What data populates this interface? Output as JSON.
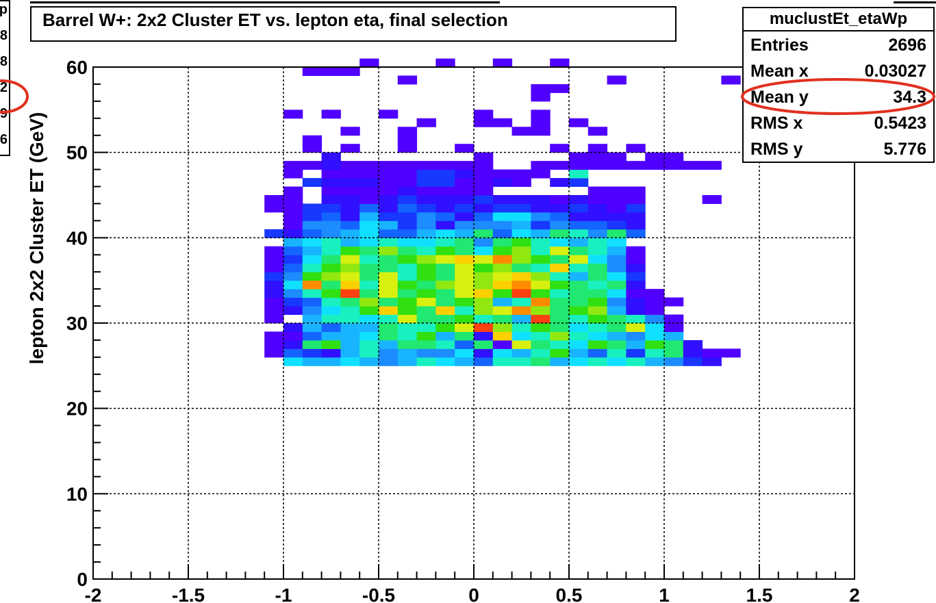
{
  "title": "Barrel W+: 2x2 Cluster ET vs. lepton eta, final selection",
  "stats": {
    "name": "muclustEt_etaWp",
    "rows": [
      {
        "label": "Entries",
        "value": "2696"
      },
      {
        "label": "Mean x",
        "value": "0.03027"
      },
      {
        "label": "Mean y",
        "value": "34.3"
      },
      {
        "label": "RMS x",
        "value": "0.5423"
      },
      {
        "label": "RMS y",
        "value": "5.776"
      }
    ],
    "highlight_row": "Mean y"
  },
  "side_panel_fragments": [
    "p",
    "8",
    "8",
    "2",
    "9",
    "6"
  ],
  "ylabel_fragment": "lepton 2x2 Cluster ET (GeV)",
  "highlight_color": "#e0301e",
  "chart_data": {
    "type": "heatmap",
    "title": "Barrel W+: 2x2 Cluster ET vs. lepton eta, final selection",
    "xlim": [
      -2,
      2
    ],
    "ylim": [
      0,
      60
    ],
    "x_ticks": [
      "-2",
      "-1.5",
      "-1",
      "-0.5",
      "0",
      "0.5",
      "1",
      "1.5",
      "2"
    ],
    "y_ticks": [
      "0",
      "10",
      "20",
      "30",
      "40",
      "50",
      "60"
    ],
    "grid": true,
    "bin_width_x": 0.1,
    "bin_width_y": 1,
    "palette": [
      "#5000ff",
      "#3010ff",
      "#1838ff",
      "#1464ff",
      "#1c8cff",
      "#18b4ff",
      "#10e0ff",
      "#18f0c0",
      "#20e870",
      "#30e010",
      "#90e810",
      "#d8f010",
      "#ffd000",
      "#ff8c00",
      "#ff4010",
      "#ff0000"
    ],
    "rows": [
      {
        "y": 25,
        "x0": -1.0,
        "levels": [
          7,
          6,
          6,
          7,
          6,
          5,
          6,
          8,
          7,
          6,
          4,
          8,
          8,
          9,
          6,
          7,
          8,
          7,
          8,
          6,
          5,
          3,
          2
        ]
      },
      {
        "y": 26,
        "x0": -1.1,
        "levels": [
          1,
          4,
          3,
          2,
          6,
          8,
          5,
          6,
          5,
          5,
          7,
          2,
          7,
          6,
          8,
          10,
          6,
          4,
          8,
          3,
          8,
          9,
          2,
          1,
          1
        ]
      },
      {
        "y": 27,
        "x0": -1.1,
        "levels": [
          1,
          2,
          9,
          10,
          6,
          8,
          6,
          9,
          9,
          8,
          4,
          9,
          1,
          12,
          9,
          8,
          7,
          10,
          9,
          6,
          10,
          9,
          2
        ]
      },
      {
        "y": 28,
        "x0": -1.1,
        "levels": [
          1,
          1,
          4,
          6,
          6,
          7,
          9,
          8,
          10,
          6,
          9,
          2,
          13,
          7,
          8,
          11,
          8,
          7,
          6,
          5,
          7,
          6
        ]
      },
      {
        "y": 29,
        "x0": -1.0,
        "levels": [
          2,
          6,
          4,
          6,
          6,
          9,
          8,
          8,
          10,
          12,
          15,
          11,
          8,
          10,
          9,
          7,
          8,
          9,
          12,
          7,
          1
        ]
      },
      {
        "y": 30,
        "x0": -1.1,
        "levels": [
          1,
          0,
          6,
          8,
          8,
          7,
          8,
          12,
          9,
          9,
          10,
          8,
          9,
          6,
          15,
          9,
          8,
          10,
          9,
          8,
          5,
          1
        ]
      },
      {
        "y": 31,
        "x0": -1.1,
        "levels": [
          1,
          2,
          5,
          7,
          8,
          10,
          13,
          10,
          9,
          13,
          8,
          11,
          12,
          14,
          11,
          9,
          10,
          11,
          6,
          2,
          1
        ]
      },
      {
        "y": 32,
        "x0": -1.1,
        "levels": [
          1,
          3,
          4,
          8,
          9,
          11,
          9,
          10,
          12,
          9,
          10,
          11,
          6,
          8,
          14,
          9,
          9,
          10,
          5,
          2,
          1,
          1
        ]
      },
      {
        "y": 33,
        "x0": -1.1,
        "levels": [
          2,
          5,
          8,
          10,
          15,
          9,
          12,
          9,
          10,
          9,
          12,
          13,
          10,
          15,
          10,
          8,
          9,
          9,
          7,
          1,
          1
        ]
      },
      {
        "y": 34,
        "x0": -1.1,
        "levels": [
          2,
          7,
          14,
          9,
          13,
          8,
          12,
          10,
          9,
          11,
          12,
          11,
          13,
          14,
          12,
          10,
          9,
          8,
          9,
          2
        ]
      },
      {
        "y": 35,
        "x0": -1.1,
        "levels": [
          3,
          5,
          10,
          11,
          12,
          9,
          12,
          8,
          10,
          9,
          12,
          11,
          12,
          13,
          11,
          8,
          6,
          9,
          7,
          3
        ]
      },
      {
        "y": 36,
        "x0": -1.1,
        "levels": [
          1,
          4,
          8,
          10,
          11,
          9,
          9,
          8,
          10,
          9,
          12,
          10,
          11,
          9,
          8,
          13,
          8,
          9,
          5,
          2
        ]
      },
      {
        "y": 37,
        "x0": -1.1,
        "levels": [
          1,
          3,
          7,
          9,
          12,
          8,
          9,
          10,
          11,
          12,
          13,
          12,
          14,
          11,
          10,
          9,
          12,
          7,
          5,
          1
        ]
      },
      {
        "y": 38,
        "x0": -1.1,
        "levels": [
          1,
          4,
          6,
          8,
          10,
          9,
          11,
          9,
          8,
          10,
          9,
          7,
          10,
          11,
          8,
          12,
          9,
          8,
          6,
          1
        ]
      },
      {
        "y": 39,
        "x0": -1.0,
        "levels": [
          6,
          7,
          8,
          6,
          7,
          8,
          7,
          7,
          8,
          9,
          5,
          9,
          10,
          8,
          7,
          6,
          8,
          7
        ]
      },
      {
        "y": 40,
        "x0": -1.1,
        "levels": [
          3,
          2,
          4,
          5,
          6,
          7,
          4,
          4,
          6,
          7,
          6,
          9,
          4,
          7,
          6,
          9,
          8,
          5,
          9,
          4
        ]
      },
      {
        "y": 41,
        "x0": -1.0,
        "levels": [
          1,
          5,
          5,
          4,
          7,
          6,
          3,
          5,
          2,
          5,
          5,
          5,
          6,
          3,
          5,
          4,
          4,
          3,
          2
        ]
      },
      {
        "y": 42,
        "x0": -1.0,
        "levels": [
          1,
          3,
          4,
          2,
          6,
          3,
          3,
          5,
          4,
          2,
          4,
          7,
          7,
          5,
          4,
          2,
          2,
          2,
          2
        ]
      },
      {
        "y": 43,
        "x0": -1.1,
        "levels": [
          1,
          1,
          3,
          3,
          2,
          4,
          2,
          4,
          3,
          2,
          3,
          2,
          3,
          3,
          2,
          2,
          3,
          2,
          1,
          3
        ]
      },
      {
        "y": 44,
        "x0": -1.1,
        "levels": [
          1,
          1,
          0,
          2,
          2,
          1,
          2,
          3,
          2,
          2,
          2,
          3,
          2,
          2,
          2,
          1,
          2,
          1,
          1,
          1,
          0,
          0,
          0,
          1
        ]
      },
      {
        "y": 45,
        "x0": -1.0,
        "levels": [
          1,
          0,
          1,
          1,
          1,
          1,
          2,
          1,
          1,
          1,
          1,
          0,
          0,
          0,
          0,
          0,
          1,
          1,
          1
        ]
      },
      {
        "y": 46,
        "x0": -0.9,
        "levels": [
          3,
          2,
          2,
          2,
          1,
          1,
          3,
          3,
          1,
          1,
          2,
          1,
          0,
          2,
          3,
          0,
          0,
          0
        ]
      },
      {
        "y": 47,
        "x0": -1.0,
        "levels": [
          1,
          0,
          1,
          1,
          1,
          1,
          1,
          3,
          3,
          2,
          1,
          1,
          1,
          1,
          0,
          8,
          0,
          0
        ]
      },
      {
        "y": 48,
        "x0": -1.0,
        "levels": [
          1,
          1,
          2,
          1,
          1,
          1,
          1,
          1,
          1,
          1,
          1,
          0,
          0,
          1,
          1,
          1,
          1,
          1,
          1,
          1,
          1,
          1,
          1
        ]
      },
      {
        "y": 49,
        "x0": -0.8,
        "levels": [
          2,
          0,
          0,
          0,
          0,
          0,
          0,
          0,
          1,
          0,
          0,
          0,
          0,
          1,
          1,
          1,
          0,
          1,
          1
        ]
      },
      {
        "y": 50,
        "x0": -0.9,
        "levels": [
          1,
          0,
          1,
          0,
          0,
          1,
          0,
          0,
          1,
          0,
          0,
          0,
          0,
          1,
          0,
          1,
          0,
          1,
          0
        ]
      },
      {
        "y": 51,
        "x0": -0.9,
        "levels": [
          1,
          0,
          0,
          0,
          0,
          1,
          0,
          0,
          0,
          0,
          0,
          0,
          0,
          0,
          0,
          0,
          0,
          0,
          0
        ]
      },
      {
        "y": 52,
        "x0": -0.7,
        "levels": [
          1,
          0,
          0,
          1,
          0,
          0,
          0,
          0,
          0,
          1,
          1,
          0,
          0,
          1,
          0,
          0,
          0
        ]
      },
      {
        "y": 53,
        "x0": -0.3,
        "levels": [
          1,
          0,
          0,
          1,
          1,
          0,
          1,
          0,
          1
        ]
      },
      {
        "y": 54,
        "x0": -1.0,
        "levels": [
          1,
          0,
          1,
          0,
          0,
          1,
          0,
          0,
          0,
          0,
          1,
          0,
          0,
          1
        ]
      },
      {
        "y": 56,
        "x0": 0.3,
        "levels": [
          1,
          0,
          0,
          0,
          0,
          0,
          0,
          0,
          0,
          0,
          0,
          0,
          0,
          0,
          0,
          0,
          0,
          0,
          1
        ]
      },
      {
        "y": 57,
        "x0": 0.3,
        "levels": [
          1,
          1
        ]
      },
      {
        "y": 58,
        "x0": -0.4,
        "levels": [
          1,
          0,
          0,
          0,
          0,
          0,
          0,
          0,
          0,
          0,
          0,
          1,
          0,
          0,
          0,
          0,
          0,
          1,
          0,
          0,
          0,
          0,
          0,
          1
        ]
      },
      {
        "y": 59,
        "x0": -0.9,
        "levels": [
          1,
          1,
          1
        ]
      },
      {
        "y": 60,
        "x0": -0.6,
        "levels": [
          1,
          0,
          0,
          0,
          1,
          0,
          0,
          1,
          0,
          0,
          1
        ]
      }
    ]
  }
}
